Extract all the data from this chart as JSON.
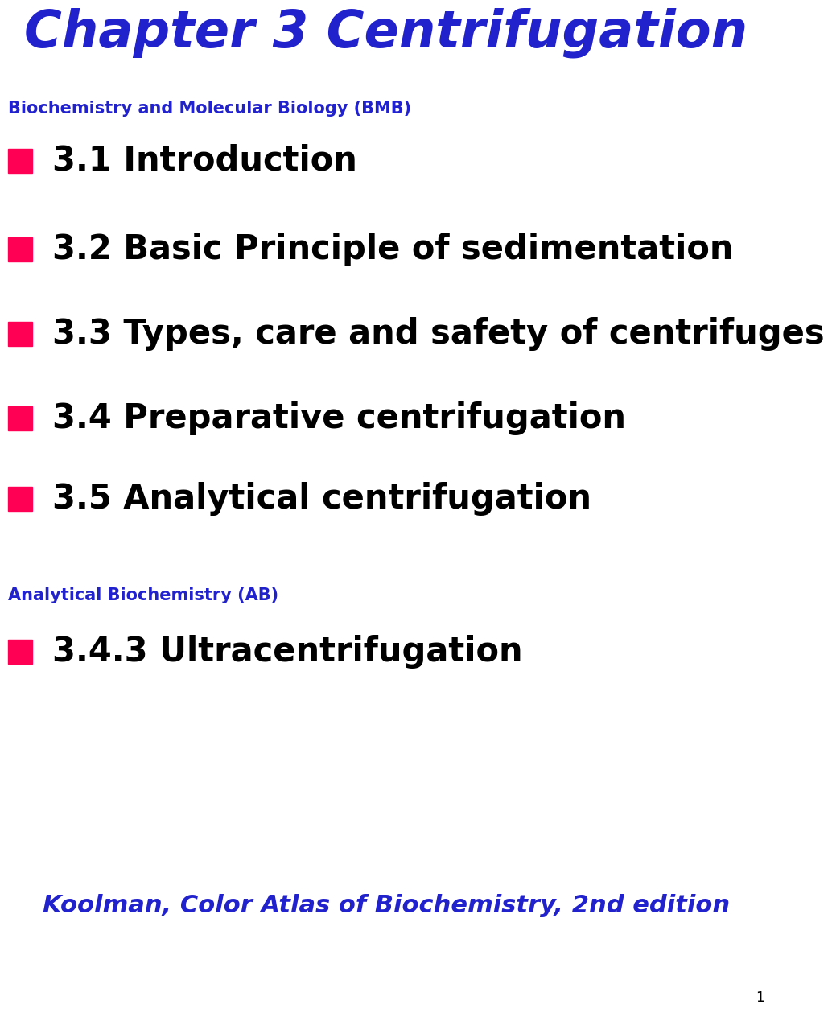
{
  "title": "Chapter 3 Centrifugation",
  "title_color": "#2222CC",
  "title_fontsize": 46,
  "background_color": "#FFFFFF",
  "section1_label": "Biochemistry and Molecular Biology (BMB)",
  "section1_label_color": "#2222CC",
  "section1_label_fontsize": 15,
  "section2_label": "Analytical Biochemistry (AB)",
  "section2_label_color": "#2222CC",
  "section2_label_fontsize": 15,
  "bullet_color": "#FF0055",
  "bullet_items_bmb": [
    {
      "text": "3.1 Introduction"
    },
    {
      "text": "3.2 Basic Principle of sedimentation"
    },
    {
      "text": "3.3 Types, care and safety of centrifuges"
    },
    {
      "text": "3.4 Preparative centrifugation"
    },
    {
      "text": "3.5 Analytical centrifugation"
    }
  ],
  "bullet_items_ab": [
    {
      "text": "3.4.3 Ultracentrifugation"
    }
  ],
  "bullet_fontsize": 30,
  "footer_text": "Koolman, Color Atlas of Biochemistry, 2nd edition",
  "footer_color": "#2222CC",
  "footer_fontsize": 22,
  "page_number": "1",
  "page_number_color": "#000000",
  "page_number_fontsize": 12
}
